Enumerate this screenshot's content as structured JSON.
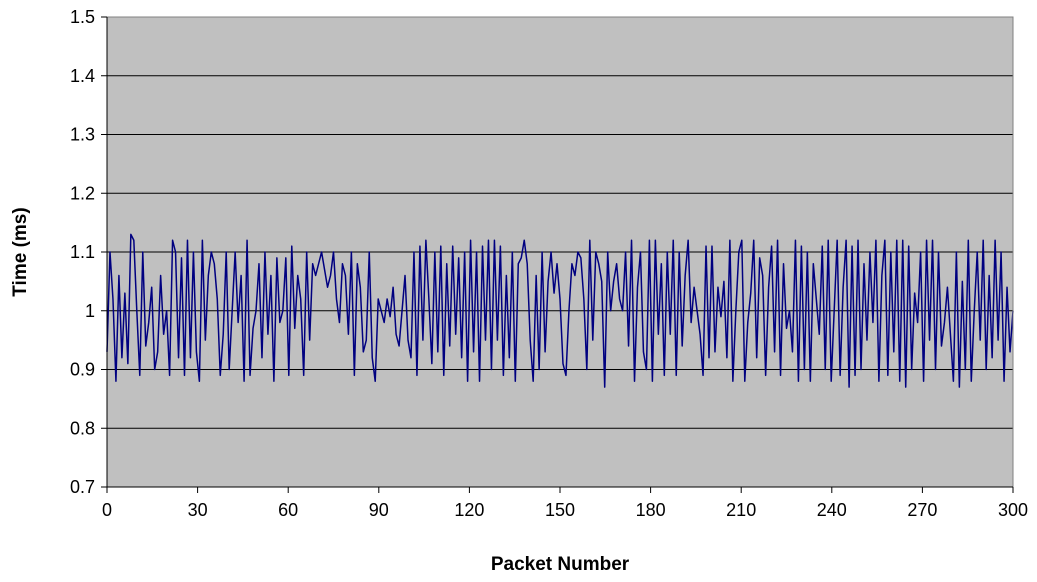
{
  "chart_data": {
    "type": "line",
    "title": "",
    "xlabel": "Packet Number",
    "ylabel": "Time (ms)",
    "xlim": [
      0,
      300
    ],
    "ylim": [
      0.7,
      1.5
    ],
    "x_ticks": [
      "0",
      "30",
      "60",
      "90",
      "120",
      "150",
      "180",
      "210",
      "240",
      "270",
      "300"
    ],
    "y_ticks": [
      "0.7",
      "0.8",
      "0.9",
      "1",
      "1.1",
      "1.2",
      "1.3",
      "1.4",
      "1.5"
    ],
    "grid": "horizontal",
    "legend": "none",
    "colors": {
      "plot_background": "#c0c0c0",
      "series": "#000080",
      "grid": "#000000"
    },
    "series": [
      {
        "values": [
          0.93,
          1.1,
          1.02,
          0.88,
          1.06,
          0.92,
          1.03,
          0.91,
          1.13,
          1.12,
          1.0,
          0.89,
          1.1,
          0.94,
          0.98,
          1.04,
          0.9,
          0.93,
          1.06,
          0.96,
          1.0,
          0.89,
          1.12,
          1.1,
          0.92,
          1.09,
          0.89,
          1.12,
          0.92,
          1.1,
          0.93,
          0.88,
          1.12,
          0.95,
          1.06,
          1.1,
          1.08,
          1.02,
          0.89,
          0.96,
          1.1,
          0.9,
          1.0,
          1.1,
          0.98,
          1.06,
          0.88,
          1.12,
          0.89,
          0.97,
          1.0,
          1.08,
          0.92,
          1.1,
          0.96,
          1.06,
          0.88,
          1.09,
          0.98,
          1.0,
          1.09,
          0.89,
          1.11,
          0.97,
          1.06,
          1.02,
          0.89,
          1.1,
          0.95,
          1.08,
          1.06,
          1.08,
          1.1,
          1.07,
          1.04,
          1.06,
          1.1,
          1.02,
          0.98,
          1.08,
          1.06,
          0.96,
          1.1,
          0.89,
          1.08,
          1.04,
          0.93,
          0.95,
          1.1,
          0.92,
          0.88,
          1.02,
          1.0,
          0.98,
          1.02,
          0.99,
          1.04,
          0.96,
          0.94,
          1.0,
          1.06,
          0.95,
          0.92,
          1.1,
          0.89,
          1.11,
          0.95,
          1.12,
          1.02,
          0.91,
          1.1,
          0.93,
          1.11,
          0.89,
          1.08,
          0.94,
          1.11,
          0.96,
          1.09,
          0.92,
          1.1,
          0.88,
          1.12,
          0.93,
          1.1,
          0.88,
          1.11,
          0.95,
          1.12,
          0.9,
          1.12,
          0.95,
          1.11,
          0.89,
          1.06,
          0.92,
          1.1,
          0.88,
          1.08,
          1.09,
          1.12,
          1.08,
          0.95,
          0.88,
          1.06,
          0.9,
          1.1,
          0.93,
          1.05,
          1.1,
          1.03,
          1.08,
          1.02,
          0.91,
          0.89,
          1.0,
          1.08,
          1.06,
          1.1,
          1.09,
          1.02,
          0.9,
          1.12,
          0.95,
          1.1,
          1.08,
          1.05,
          0.87,
          1.1,
          1.0,
          1.05,
          1.08,
          1.02,
          1.0,
          1.1,
          0.94,
          1.12,
          0.88,
          1.04,
          1.1,
          0.93,
          0.9,
          1.12,
          0.88,
          1.12,
          0.96,
          1.08,
          0.89,
          1.1,
          0.96,
          1.12,
          0.89,
          1.1,
          0.94,
          1.06,
          1.12,
          0.98,
          1.04,
          1.0,
          0.96,
          0.89,
          1.11,
          0.92,
          1.11,
          0.93,
          1.04,
          0.99,
          1.05,
          0.92,
          1.12,
          0.88,
          1.0,
          1.1,
          1.12,
          0.88,
          0.98,
          1.03,
          1.12,
          0.92,
          1.09,
          1.06,
          0.89,
          1.04,
          1.11,
          0.93,
          1.12,
          0.89,
          1.08,
          0.97,
          1.0,
          0.93,
          1.12,
          0.88,
          1.11,
          0.9,
          1.1,
          0.88,
          1.08,
          1.02,
          0.96,
          1.11,
          0.9,
          1.12,
          0.88,
          1.0,
          1.12,
          0.89,
          1.04,
          1.12,
          0.87,
          1.11,
          0.89,
          1.12,
          0.9,
          1.08,
          0.95,
          1.1,
          0.98,
          1.12,
          0.88,
          1.06,
          1.12,
          0.89,
          1.1,
          0.93,
          1.12,
          0.88,
          1.12,
          0.87,
          1.11,
          0.9,
          1.03,
          0.98,
          1.1,
          0.88,
          1.12,
          0.95,
          1.12,
          0.9,
          1.1,
          0.94,
          0.98,
          1.04,
          0.96,
          0.88,
          1.1,
          0.87,
          1.05,
          0.9,
          1.12,
          0.88,
          1.0,
          1.1,
          0.95,
          1.12,
          0.9,
          1.06,
          0.92,
          1.12,
          0.95,
          1.1,
          0.88,
          1.04,
          0.93,
          1.0
        ]
      }
    ]
  }
}
